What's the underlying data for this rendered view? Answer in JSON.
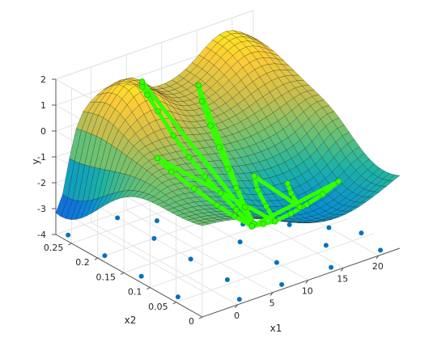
{
  "chart_data": {
    "type": "surface3d",
    "title": "",
    "xlabel": "x1",
    "ylabel": "x2",
    "zlabel": "y",
    "xlim": [
      -5,
      23
    ],
    "ylim": [
      0,
      0.28
    ],
    "zlim": [
      -4,
      2
    ],
    "xticks": [
      "0",
      "5",
      "10",
      "15",
      "20"
    ],
    "yticks": [
      "0",
      "0.05",
      "0.1",
      "0.15",
      "0.2",
      "0.25"
    ],
    "zticks": [
      "-4",
      "-3",
      "-2",
      "-1",
      "0",
      "1",
      "2"
    ],
    "grid": true,
    "colormap": "parula",
    "surface": {
      "x_range": [
        -5,
        23
      ],
      "x2_range": [
        0,
        0.28
      ],
      "grid_size": [
        30,
        30
      ],
      "description": "GP posterior mean surface: steep drop to about -4 near x1≈-5, x2≈0.27; ridge up to about 2 near x1≈20, x2≈0.27"
    },
    "samples_floor": {
      "z": -4,
      "points": [
        [
          -4,
          0.27
        ],
        [
          3,
          0.27
        ],
        [
          10,
          0.27
        ],
        [
          17,
          0.27
        ],
        [
          22,
          0.27
        ],
        [
          -4,
          0.2
        ],
        [
          3,
          0.2
        ],
        [
          10,
          0.2
        ],
        [
          17,
          0.2
        ],
        [
          22,
          0.2
        ],
        [
          -4,
          0.13
        ],
        [
          3,
          0.13
        ],
        [
          10,
          0.13
        ],
        [
          17,
          0.13
        ],
        [
          22,
          0.13
        ],
        [
          -4,
          0.06
        ],
        [
          3,
          0.06
        ],
        [
          10,
          0.06
        ],
        [
          17,
          0.06
        ],
        [
          22,
          0.06
        ],
        [
          1,
          0.01
        ],
        [
          7,
          0.01
        ],
        [
          14,
          0.01
        ],
        [
          21,
          0.01
        ],
        [
          6,
          0.235
        ],
        [
          13,
          0.165
        ],
        [
          20,
          0.095
        ]
      ]
    },
    "trajectory": {
      "color": "#33ff00",
      "description": "optimization trajectory (green markers) on the surface",
      "points": [
        [
          5,
          0.04,
          -1.9
        ],
        [
          7,
          0.045,
          -2.05
        ],
        [
          9,
          0.05,
          -2.2
        ],
        [
          12,
          0.06,
          -2.3
        ],
        [
          15,
          0.07,
          -2.35
        ],
        [
          18,
          0.08,
          -2.35
        ],
        [
          21,
          0.09,
          -2.25
        ],
        [
          5,
          0.04,
          -1.9
        ],
        [
          5,
          0.07,
          -1.6
        ],
        [
          5,
          0.1,
          -1.3
        ],
        [
          5,
          0.13,
          -1.0
        ],
        [
          5,
          0.16,
          -0.6
        ],
        [
          5,
          0.19,
          -0.1
        ],
        [
          5,
          0.22,
          0.5
        ],
        [
          5,
          0.24,
          0.9
        ],
        [
          5,
          0.25,
          1.1
        ],
        [
          5,
          0.25,
          1.3
        ],
        [
          6,
          0.05,
          -2.0
        ],
        [
          7,
          0.08,
          -1.8
        ],
        [
          8,
          0.11,
          -1.5
        ],
        [
          9,
          0.14,
          -1.2
        ],
        [
          10,
          0.17,
          -0.8
        ],
        [
          11,
          0.2,
          -0.4
        ],
        [
          12,
          0.23,
          0.1
        ],
        [
          13,
          0.25,
          0.4
        ],
        [
          5,
          0.04,
          -1.9
        ],
        [
          4,
          0.06,
          -1.65
        ],
        [
          3,
          0.08,
          -1.35
        ],
        [
          2,
          0.11,
          -0.95
        ],
        [
          1,
          0.14,
          -0.55
        ],
        [
          0.5,
          0.16,
          -0.2
        ],
        [
          9,
          0.05,
          -2.2
        ],
        [
          10,
          0.08,
          -2.05
        ],
        [
          11,
          0.11,
          -1.85
        ],
        [
          12,
          0.13,
          -1.65
        ],
        [
          14,
          0.07,
          -2.35
        ],
        [
          15,
          0.1,
          -2.25
        ],
        [
          16,
          0.12,
          -2.2
        ]
      ]
    }
  }
}
